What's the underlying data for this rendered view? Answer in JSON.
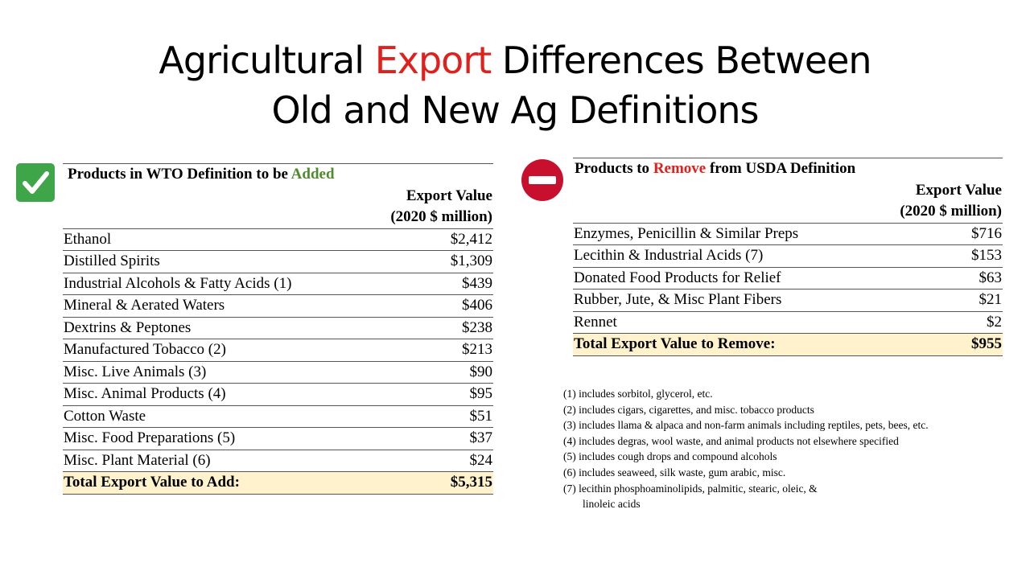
{
  "title": {
    "line1_pre": "Agricultural ",
    "line1_highlight": "Export",
    "line1_post": " Differences Between",
    "line2": "Old and New Ag Definitions",
    "highlight_color": "#e0201c"
  },
  "left": {
    "icon": "checkmark-icon",
    "heading_pre": "Products in WTO Definition  to be ",
    "heading_highlight": "Added",
    "col_header_1": "Export Value",
    "col_header_2": "(2020 $ million)",
    "rows": [
      {
        "product": "Ethanol",
        "value": "$2,412"
      },
      {
        "product": "Distilled Spirits",
        "value": "$1,309"
      },
      {
        "product": "Industrial Alcohols & Fatty Acids (1)",
        "value": "$439"
      },
      {
        "product": "Mineral & Aerated Waters",
        "value": "$406"
      },
      {
        "product": "Dextrins & Peptones",
        "value": "$238"
      },
      {
        "product": "Manufactured Tobacco (2)",
        "value": "$213"
      },
      {
        "product": "Misc. Live Animals (3)",
        "value": "$90"
      },
      {
        "product": "Misc. Animal Products (4)",
        "value": "$95"
      },
      {
        "product": "Cotton Waste",
        "value": "$51"
      },
      {
        "product": "Misc. Food Preparations (5)",
        "value": "$37"
      },
      {
        "product": "Misc. Plant Material (6)",
        "value": "$24"
      }
    ],
    "total_label": "Total Export Value to Add:",
    "total_value": "$5,315"
  },
  "right": {
    "icon": "no-entry-icon",
    "heading_pre": "Products to ",
    "heading_highlight": "Remove",
    "heading_post": " from USDA Definition",
    "col_header_1": "Export Value",
    "col_header_2": "(2020 $ million)",
    "rows": [
      {
        "product": "Enzymes, Penicillin & Similar Preps",
        "value": "$716"
      },
      {
        "product": "Lecithin & Industrial Acids (7)",
        "value": "$153"
      },
      {
        "product": "Donated Food Products for Relief",
        "value": "$63"
      },
      {
        "product": "Rubber, Jute, & Misc Plant Fibers",
        "value": "$21"
      },
      {
        "product": "Rennet",
        "value": "$2"
      }
    ],
    "total_label": "Total Export Value to Remove:",
    "total_value": "$955"
  },
  "footnotes": [
    "(1) includes  sorbitol,  glycerol,  etc.",
    "(2) includes  cigars,  cigarettes,  and misc.  tobacco products",
    "(3) includes  llama  & alpaca and non-farm  animals  including  reptiles, pets, bees, etc.",
    "(4) includes  degras, wool waste, and animal  products  not elsewhere  specified",
    "(5) includes  cough  drops and compound  alcohols",
    "(6) includes  seaweed, silk  waste, gum  arabic, misc.",
    "(7) lecithin  phosphoaminolipids,  palmitic,  stearic,  oleic,  &"
  ],
  "footnote_continuation": "linoleic  acids"
}
